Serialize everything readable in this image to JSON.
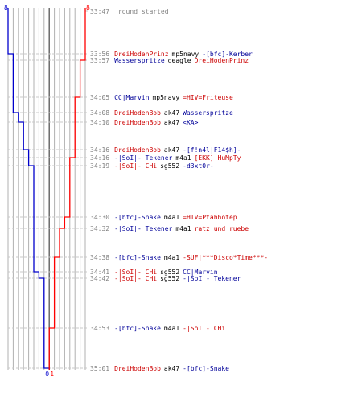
{
  "colors": {
    "blue": "#0000cc",
    "red": "#ff0000",
    "blue_text": "#000099",
    "red_text": "#cc0000",
    "grid": "#b0b0b0",
    "grid_dark": "#606060",
    "dash": "#c8c8c8",
    "time": "#808080"
  },
  "scores": {
    "blue_start": "8",
    "red_start": "8",
    "blue_end": "0",
    "red_end": "1"
  },
  "header": {
    "time": "33:47",
    "text": "round started"
  },
  "events": [
    {
      "time": "33:56",
      "killer": "DreiHodenPrinz",
      "killer_team": "red",
      "weapon": "mp5navy",
      "victim": "-[bfc]-Kerber",
      "victim_team": "blue"
    },
    {
      "time": "33:57",
      "killer": "Wasserspritze",
      "killer_team": "blue",
      "weapon": "deagle",
      "victim": "DreiHodenPrinz",
      "victim_team": "red"
    },
    {
      "time": "34:05",
      "killer": "CC|Marvin",
      "killer_team": "blue",
      "weapon": "mp5navy",
      "victim": "=HIV=Friteuse",
      "victim_team": "red"
    },
    {
      "time": "34:08",
      "killer": "DreiHodenBob",
      "killer_team": "red",
      "weapon": "ak47",
      "victim": "Wasserspritze",
      "victim_team": "blue"
    },
    {
      "time": "34:10",
      "killer": "DreiHodenBob",
      "killer_team": "red",
      "weapon": "ak47",
      "victim": "<KA>",
      "victim_team": "blue"
    },
    {
      "time": "34:16",
      "killer": "DreiHodenBob",
      "killer_team": "red",
      "weapon": "ak47",
      "victim": "-[f!n4l|F14$h]-",
      "victim_team": "blue"
    },
    {
      "time": "34:16",
      "killer": "-|SoI|- Tekener",
      "killer_team": "blue",
      "weapon": "m4a1",
      "victim": "[EKK] HuMpTy",
      "victim_team": "red"
    },
    {
      "time": "34:19",
      "killer": "-|SoI|- CHi",
      "killer_team": "red",
      "weapon": "sg552",
      "victim": "-d3xt0r-",
      "victim_team": "blue"
    },
    {
      "time": "34:30",
      "killer": "-[bfc]-Snake",
      "killer_team": "blue",
      "weapon": "m4a1",
      "victim": "=HIV=Ptahhotep",
      "victim_team": "red"
    },
    {
      "time": "34:32",
      "killer": "-|SoI|- Tekener",
      "killer_team": "blue",
      "weapon": "m4a1",
      "victim": "ratz_und_ruebe",
      "victim_team": "red"
    },
    {
      "time": "34:38",
      "killer": "-[bfc]-Snake",
      "killer_team": "blue",
      "weapon": "m4a1",
      "victim": "-SUF|***Disco*Time***-",
      "victim_team": "red"
    },
    {
      "time": "34:41",
      "killer": "-|SoI|- CHi",
      "killer_team": "red",
      "weapon": "sg552",
      "victim": "CC|Marvin",
      "victim_team": "blue"
    },
    {
      "time": "34:42",
      "killer": "-|SoI|- CHi",
      "killer_team": "red",
      "weapon": "sg552",
      "victim": "-|SoI|- Tekener",
      "victim_team": "blue"
    },
    {
      "time": "34:53",
      "killer": "-[bfc]-Snake",
      "killer_team": "blue",
      "weapon": "m4a1",
      "victim": "-|SoI|- CHi",
      "victim_team": "red"
    },
    {
      "time": "35:01",
      "killer": "DreiHodenBob",
      "killer_team": "red",
      "weapon": "ak47",
      "victim": "-[bfc]-Snake",
      "victim_team": "blue"
    }
  ]
}
